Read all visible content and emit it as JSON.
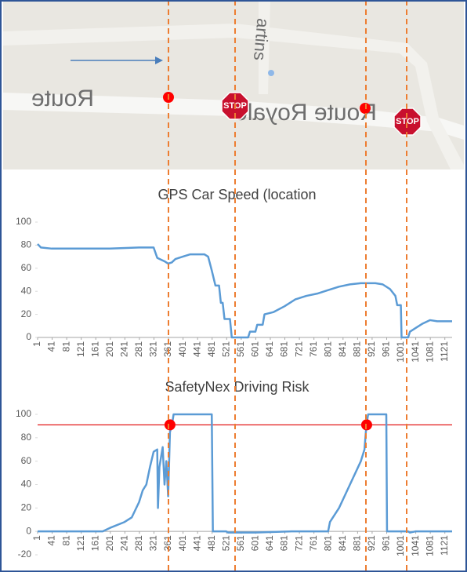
{
  "map": {
    "street_labels": [
      "Route Royale",
      "Route"
    ],
    "side_street": "artins",
    "stop_signs": [
      "STOP",
      "STOP"
    ]
  },
  "chart_data": [
    {
      "type": "line",
      "title": "GPS Car Speed (location",
      "x": [
        1,
        10,
        40,
        100,
        200,
        280,
        320,
        330,
        350,
        360,
        370,
        380,
        400,
        420,
        460,
        470,
        480,
        490,
        500,
        505,
        510,
        515,
        530,
        535,
        580,
        585,
        600,
        605,
        620,
        625,
        650,
        680,
        710,
        740,
        770,
        800,
        830,
        860,
        890,
        930,
        950,
        970,
        985,
        990,
        1000,
        1002,
        1020,
        1025,
        1040,
        1060,
        1080,
        1100,
        1141
      ],
      "series": [
        {
          "color": "#5b9bd5",
          "values": [
            81,
            78,
            77,
            77,
            77,
            78,
            78,
            69,
            66,
            64,
            65,
            68,
            70,
            72,
            72,
            70,
            58,
            45,
            45,
            30,
            30,
            16,
            16,
            0,
            0,
            5,
            5,
            11,
            11,
            20,
            22,
            27,
            33,
            36,
            38,
            41,
            44,
            46,
            47,
            47,
            46,
            42,
            36,
            28,
            28,
            0,
            0,
            5,
            8,
            12,
            15,
            14,
            14
          ]
        }
      ],
      "xlim": [
        1,
        1141
      ],
      "xticks": [
        1,
        41,
        81,
        121,
        161,
        201,
        241,
        281,
        321,
        361,
        401,
        441,
        481,
        521,
        561,
        601,
        641,
        681,
        721,
        761,
        801,
        841,
        881,
        921,
        961,
        1001,
        1041,
        1081,
        1121
      ],
      "ylim": [
        0,
        100
      ],
      "yticks": [
        0,
        20,
        40,
        60,
        80,
        100
      ]
    },
    {
      "type": "line",
      "title": "SafetyNex Driving Risk",
      "x": [
        1,
        180,
        200,
        240,
        260,
        280,
        290,
        300,
        310,
        320,
        330,
        332,
        336,
        345,
        350,
        355,
        360,
        365,
        370,
        375,
        480,
        483,
        520,
        525,
        600,
        700,
        800,
        805,
        830,
        860,
        890,
        900,
        905,
        910,
        960,
        962,
        1020,
        1025,
        1040,
        1141
      ],
      "series": [
        {
          "color": "#5b9bd5",
          "values": [
            0,
            0,
            3,
            8,
            12,
            25,
            35,
            40,
            55,
            68,
            70,
            20,
            55,
            72,
            40,
            60,
            30,
            85,
            90,
            100,
            100,
            0,
            0,
            -1,
            -1,
            0,
            0,
            8,
            20,
            40,
            60,
            70,
            90,
            100,
            100,
            0,
            0,
            -1,
            0,
            0
          ]
        }
      ],
      "threshold": 91,
      "threshold_color": "#e00000",
      "markers": {
        "x": [
          365,
          906
        ],
        "values": [
          91,
          91
        ],
        "color": "#ff0000"
      },
      "xlim": [
        1,
        1141
      ],
      "xticks": [
        1,
        41,
        81,
        121,
        161,
        201,
        241,
        281,
        321,
        361,
        401,
        441,
        481,
        521,
        561,
        601,
        641,
        681,
        721,
        761,
        801,
        841,
        881,
        921,
        961,
        1001,
        1041,
        1081,
        1121
      ],
      "ylim": [
        -20,
        100
      ],
      "yticks": [
        -20,
        0,
        20,
        40,
        60,
        80,
        100
      ]
    }
  ]
}
